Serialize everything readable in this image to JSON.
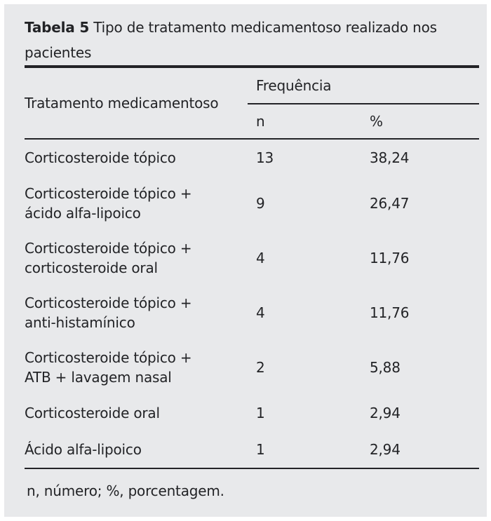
{
  "panel": {
    "background_color": "#e8e9eb",
    "rule_color": "#232327",
    "text_color": "#222326"
  },
  "caption": {
    "label": "Tabela 5",
    "line1_rest": "Tipo de tratamento medicamentoso realizado nos",
    "line2": "pacientes"
  },
  "header": {
    "treatment": "Tratamento medicamentoso",
    "group": "Frequência",
    "n": "n",
    "pct": "%"
  },
  "rows": [
    {
      "line1": "Corticosteroide tópico",
      "line2": "",
      "n": "13",
      "pct": "38,24"
    },
    {
      "line1": "Corticosteroide tópico +",
      "line2": "ácido alfa-lipoico",
      "n": "9",
      "pct": "26,47"
    },
    {
      "line1": "Corticosteroide tópico +",
      "line2": "corticosteroide oral",
      "n": "4",
      "pct": "11,76"
    },
    {
      "line1": "Corticosteroide tópico +",
      "line2": "anti-histamínico",
      "n": "4",
      "pct": "11,76"
    },
    {
      "line1": "Corticosteroide tópico +",
      "line2": "ATB + lavagem nasal",
      "n": "2",
      "pct": "5,88"
    },
    {
      "line1": "Corticosteroide oral",
      "line2": "",
      "n": "1",
      "pct": "2,94"
    },
    {
      "line1": "Ácido alfa-lipoico",
      "line2": "",
      "n": "1",
      "pct": "2,94"
    }
  ],
  "footnote": "n, número; %, porcentagem."
}
